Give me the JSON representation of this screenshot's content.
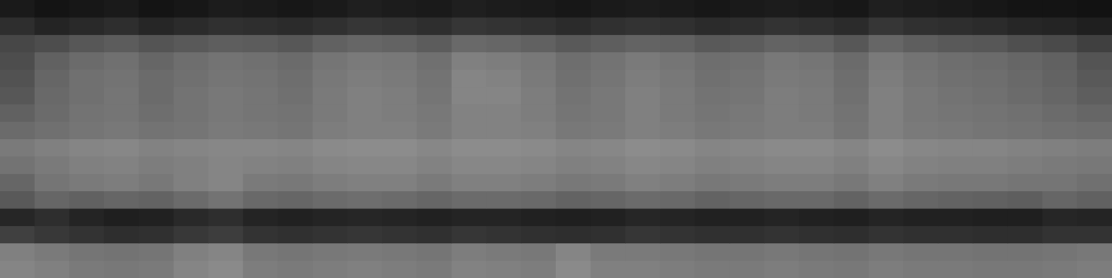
{
  "chart_data": {
    "type": "heatmap",
    "grid": false,
    "tick_labels": false,
    "color_range": [
      0,
      100
    ],
    "cells": [
      [
        10,
        8,
        9,
        10,
        8,
        9,
        11,
        10,
        9,
        10,
        12,
        11,
        10,
        12,
        11,
        10,
        9,
        10,
        11,
        10,
        9,
        10,
        11,
        10,
        9,
        12,
        11,
        10,
        9,
        8,
        8,
        7
      ],
      [
        18,
        14,
        16,
        18,
        15,
        17,
        19,
        18,
        17,
        19,
        21,
        20,
        18,
        21,
        20,
        19,
        17,
        19,
        20,
        19,
        17,
        18,
        20,
        19,
        17,
        21,
        19,
        18,
        17,
        15,
        14,
        12
      ],
      [
        28,
        30,
        34,
        36,
        33,
        35,
        37,
        36,
        34,
        38,
        40,
        39,
        36,
        41,
        40,
        38,
        35,
        37,
        39,
        38,
        35,
        36,
        39,
        38,
        34,
        40,
        37,
        35,
        34,
        31,
        29,
        25
      ],
      [
        30,
        38,
        42,
        44,
        40,
        43,
        45,
        44,
        42,
        46,
        48,
        47,
        44,
        50,
        49,
        47,
        43,
        45,
        48,
        46,
        43,
        44,
        47,
        46,
        42,
        48,
        45,
        43,
        42,
        40,
        38,
        33
      ],
      [
        32,
        40,
        44,
        45,
        42,
        44,
        46,
        45,
        43,
        47,
        49,
        48,
        45,
        52,
        51,
        48,
        44,
        46,
        49,
        47,
        44,
        45,
        48,
        47,
        43,
        49,
        46,
        44,
        43,
        41,
        39,
        35
      ],
      [
        34,
        41,
        44,
        46,
        42,
        45,
        47,
        46,
        44,
        48,
        50,
        49,
        46,
        52,
        52,
        49,
        45,
        47,
        50,
        48,
        45,
        46,
        49,
        48,
        44,
        50,
        47,
        45,
        44,
        42,
        40,
        37
      ],
      [
        38,
        42,
        45,
        46,
        43,
        45,
        47,
        46,
        45,
        48,
        50,
        49,
        47,
        51,
        51,
        49,
        46,
        47,
        50,
        48,
        46,
        47,
        49,
        48,
        45,
        50,
        47,
        46,
        45,
        44,
        42,
        40
      ],
      [
        42,
        44,
        46,
        47,
        45,
        46,
        48,
        47,
        46,
        49,
        50,
        50,
        48,
        51,
        51,
        50,
        47,
        48,
        50,
        49,
        47,
        48,
        49,
        49,
        46,
        50,
        48,
        47,
        46,
        45,
        44,
        43
      ],
      [
        48,
        50,
        52,
        53,
        51,
        52,
        53,
        53,
        52,
        54,
        55,
        55,
        53,
        55,
        55,
        54,
        52,
        53,
        55,
        54,
        52,
        53,
        54,
        54,
        52,
        55,
        53,
        52,
        52,
        51,
        50,
        49
      ],
      [
        45,
        48,
        50,
        51,
        49,
        50,
        52,
        51,
        50,
        52,
        53,
        53,
        51,
        53,
        53,
        52,
        50,
        51,
        53,
        52,
        50,
        51,
        52,
        52,
        50,
        53,
        51,
        50,
        50,
        49,
        48,
        47
      ],
      [
        40,
        46,
        48,
        49,
        47,
        50,
        52,
        48,
        47,
        49,
        50,
        50,
        48,
        50,
        50,
        49,
        47,
        48,
        50,
        49,
        47,
        48,
        49,
        49,
        47,
        50,
        48,
        47,
        47,
        46,
        46,
        44
      ],
      [
        35,
        40,
        38,
        40,
        39,
        42,
        45,
        41,
        40,
        42,
        43,
        42,
        40,
        42,
        42,
        41,
        39,
        40,
        42,
        41,
        39,
        40,
        41,
        41,
        39,
        42,
        40,
        39,
        38,
        37,
        40,
        38
      ],
      [
        15,
        18,
        14,
        12,
        13,
        16,
        18,
        14,
        13,
        14,
        15,
        14,
        13,
        14,
        14,
        13,
        12,
        13,
        15,
        14,
        13,
        13,
        14,
        13,
        12,
        14,
        13,
        13,
        12,
        12,
        15,
        14
      ],
      [
        25,
        22,
        20,
        18,
        19,
        22,
        24,
        20,
        19,
        20,
        21,
        20,
        19,
        21,
        20,
        19,
        18,
        19,
        21,
        20,
        19,
        19,
        20,
        19,
        18,
        20,
        19,
        19,
        18,
        18,
        20,
        20
      ],
      [
        50,
        48,
        46,
        45,
        46,
        50,
        52,
        47,
        46,
        47,
        48,
        47,
        46,
        49,
        48,
        47,
        52,
        48,
        48,
        47,
        46,
        46,
        47,
        46,
        45,
        47,
        46,
        46,
        45,
        45,
        46,
        47
      ],
      [
        52,
        50,
        48,
        47,
        48,
        52,
        54,
        49,
        48,
        49,
        50,
        49,
        48,
        51,
        50,
        49,
        54,
        50,
        50,
        49,
        48,
        48,
        49,
        48,
        47,
        49,
        48,
        48,
        47,
        47,
        48,
        49
      ]
    ]
  }
}
